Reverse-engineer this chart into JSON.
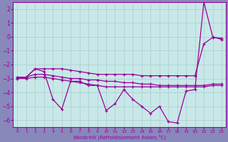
{
  "xlabel": "Windchill (Refroidissement éolien,°C)",
  "x": [
    0,
    1,
    2,
    3,
    4,
    5,
    6,
    7,
    8,
    9,
    10,
    11,
    12,
    13,
    14,
    15,
    16,
    17,
    18,
    19,
    20,
    21,
    22,
    23
  ],
  "line_zigzag": [
    -3.0,
    -2.9,
    -2.3,
    -2.5,
    -4.5,
    -5.2,
    -3.2,
    -3.2,
    -3.5,
    -3.5,
    -5.3,
    -4.8,
    -3.8,
    -4.5,
    -5.0,
    -5.5,
    -5.0,
    -6.1,
    -6.2,
    -3.9,
    -3.8,
    2.5,
    -0.0,
    -0.2
  ],
  "line_up": [
    -2.9,
    -2.9,
    -2.3,
    -2.3,
    -2.3,
    -2.3,
    -2.4,
    -2.5,
    -2.6,
    -2.7,
    -2.7,
    -2.7,
    -2.7,
    -2.7,
    -2.8,
    -2.8,
    -2.8,
    -2.8,
    -2.8,
    -2.8,
    -2.8,
    -0.5,
    -0.05,
    -0.1
  ],
  "line_flat1": [
    -2.9,
    -2.9,
    -2.7,
    -2.7,
    -2.8,
    -2.9,
    -3.0,
    -3.0,
    -3.1,
    -3.1,
    -3.2,
    -3.2,
    -3.3,
    -3.3,
    -3.4,
    -3.4,
    -3.5,
    -3.5,
    -3.5,
    -3.5,
    -3.5,
    -3.5,
    -3.4,
    -3.4
  ],
  "line_flat2": [
    -3.0,
    -3.0,
    -2.9,
    -2.9,
    -3.0,
    -3.1,
    -3.2,
    -3.3,
    -3.4,
    -3.5,
    -3.6,
    -3.6,
    -3.6,
    -3.6,
    -3.6,
    -3.6,
    -3.6,
    -3.6,
    -3.6,
    -3.6,
    -3.6,
    -3.6,
    -3.5,
    -3.5
  ],
  "ylim": [
    -6.5,
    2.5
  ],
  "xlim": [
    -0.5,
    23.5
  ],
  "yticks": [
    2,
    1,
    0,
    -1,
    -2,
    -3,
    -4,
    -5,
    -6
  ],
  "xticks": [
    0,
    1,
    2,
    3,
    4,
    5,
    6,
    7,
    8,
    9,
    10,
    11,
    12,
    13,
    14,
    15,
    16,
    17,
    18,
    19,
    20,
    21,
    22,
    23
  ],
  "line_color": "#990099",
  "bg_color": "#c8e8e8",
  "grid_color": "#aacccc",
  "fig_bg": "#8888bb"
}
